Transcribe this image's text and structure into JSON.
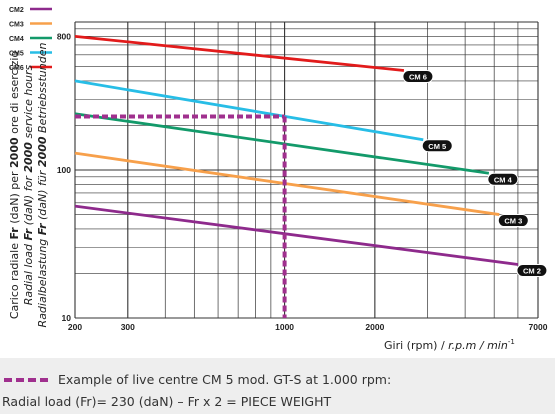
{
  "chart_data": {
    "type": "line",
    "log_x": true,
    "log_y": true,
    "xlim": [
      200,
      7000
    ],
    "ylim": [
      10,
      1000
    ],
    "grid": true,
    "legend": "top-left",
    "xlabel_prefix": "Giri (rpm) / ",
    "xlabel_units": "r.p.m / min",
    "xlabel_exp": "-1",
    "ylabel_lines": [
      {
        "pre": "Carico radiale ",
        "bold": "Fr",
        "mid": " (daN) per ",
        "bold2": "2000",
        "post": " ore di esercizio"
      },
      {
        "pre": "Radial load ",
        "bold": "Fr",
        "mid": " (daN) for ",
        "bold2": "2000",
        "post": " service hours"
      },
      {
        "pre": "Radialbelastung ",
        "bold": "Fr",
        "mid": " (daN) für ",
        "bold2": "2000",
        "post": " Betriebsstunden"
      }
    ],
    "x_ticks": [
      {
        "value": 200,
        "label": "200"
      },
      {
        "value": 300,
        "label": "300"
      },
      {
        "value": 1000,
        "label": "1000"
      },
      {
        "value": 2000,
        "label": "2000"
      },
      {
        "value": 7000,
        "label": "7000"
      }
    ],
    "y_ticks": [
      {
        "value": 10,
        "label": "10"
      },
      {
        "value": 100,
        "label": "100"
      },
      {
        "value": 800,
        "label": "800"
      }
    ],
    "series": [
      {
        "name": "CM6",
        "tag": "CM 6",
        "color": "#e21b1b",
        "x": [
          200,
          2500
        ],
        "y": [
          800,
          470
        ]
      },
      {
        "name": "CM5",
        "tag": "CM 5",
        "color": "#27bde6",
        "x": [
          200,
          2900
        ],
        "y": [
          400,
          160
        ]
      },
      {
        "name": "CM4",
        "tag": "CM 4",
        "color": "#139a6a",
        "x": [
          200,
          4800
        ],
        "y": [
          240,
          95
        ]
      },
      {
        "name": "CM3",
        "tag": "CM 3",
        "color": "#f7a04b",
        "x": [
          200,
          5200
        ],
        "y": [
          130,
          50
        ]
      },
      {
        "name": "CM2",
        "tag": "CM 2",
        "color": "#8e2a8c",
        "x": [
          200,
          6000
        ],
        "y": [
          57,
          23
        ]
      }
    ],
    "example": {
      "color": "#a0308e",
      "x": 1000,
      "y": 230
    }
  },
  "caption": {
    "line1": "Example of live centre CM 5 mod. GT-S at 1.000 rpm:",
    "line2": "Radial load (Fr)= 230 (daN) – Fr x 2 = PIECE WEIGHT"
  }
}
